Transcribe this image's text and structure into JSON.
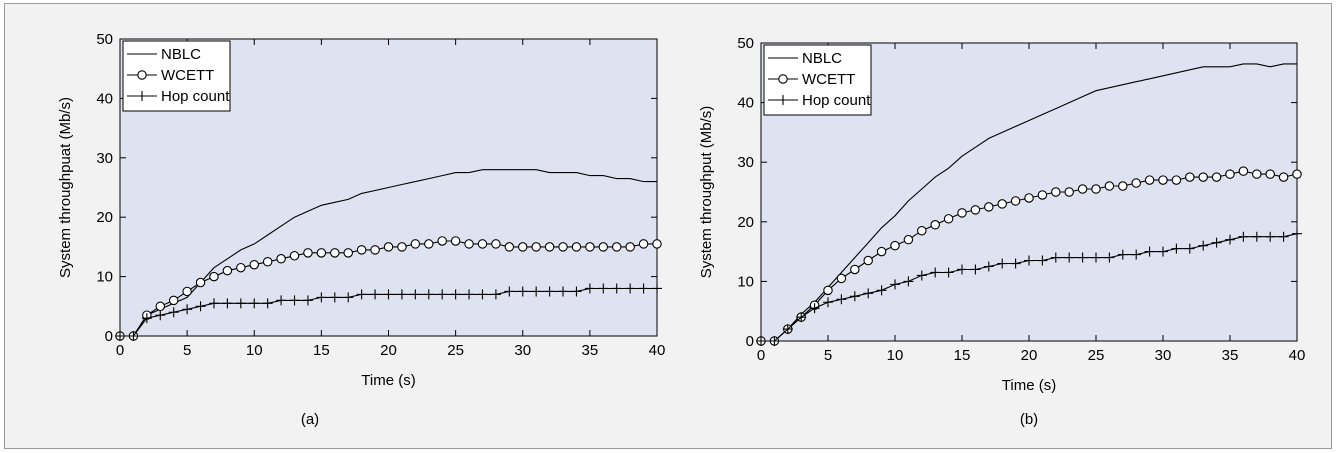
{
  "colors": {
    "figure_background": "#f2f2f2",
    "plot_background": "#dfe3f1",
    "line": "#000000",
    "marker_fill": "#ffffff"
  },
  "chart_data": [
    {
      "type": "line",
      "caption": "(a)",
      "xlabel": "Time (s)",
      "ylabel": "System throughpuat (Mb/s)",
      "xlim": [
        0,
        40
      ],
      "ylim": [
        0,
        50
      ],
      "xticks": [
        "0",
        "5",
        "10",
        "15",
        "20",
        "25",
        "30",
        "35",
        "40"
      ],
      "yticks": [
        "0",
        "10",
        "20",
        "30",
        "40",
        "50"
      ],
      "grid": false,
      "legend_position": "top-left",
      "series": [
        {
          "name": "NBLC",
          "marker": "none",
          "x": [
            0,
            1,
            2,
            3,
            4,
            5,
            6,
            7,
            8,
            9,
            10,
            11,
            12,
            13,
            14,
            15,
            16,
            17,
            18,
            19,
            20,
            21,
            22,
            23,
            24,
            25,
            26,
            27,
            28,
            29,
            30,
            31,
            32,
            33,
            34,
            35,
            36,
            37,
            38,
            39,
            40
          ],
          "y": [
            0,
            0,
            3.5,
            4.5,
            5.5,
            6.5,
            9,
            11.5,
            13,
            14.5,
            15.5,
            17,
            18.5,
            20,
            21,
            22,
            22.5,
            23,
            24,
            24.5,
            25,
            25.5,
            26,
            26.5,
            27,
            27.5,
            27.5,
            28,
            28,
            28,
            28,
            28,
            27.5,
            27.5,
            27.5,
            27,
            27,
            26.5,
            26.5,
            26,
            26
          ]
        },
        {
          "name": "WCETT",
          "marker": "circle",
          "x": [
            0,
            1,
            2,
            3,
            4,
            5,
            6,
            7,
            8,
            9,
            10,
            11,
            12,
            13,
            14,
            15,
            16,
            17,
            18,
            19,
            20,
            21,
            22,
            23,
            24,
            25,
            26,
            27,
            28,
            29,
            30,
            31,
            32,
            33,
            34,
            35,
            36,
            37,
            38,
            39,
            40
          ],
          "y": [
            0,
            0,
            3.5,
            5,
            6,
            7.5,
            9,
            10,
            11,
            11.5,
            12,
            12.5,
            13,
            13.5,
            14,
            14,
            14,
            14,
            14.5,
            14.5,
            15,
            15,
            15.5,
            15.5,
            16,
            16,
            15.5,
            15.5,
            15.5,
            15,
            15,
            15,
            15,
            15,
            15,
            15,
            15,
            15,
            15,
            15.5,
            15.5
          ]
        },
        {
          "name": "Hop count",
          "marker": "plus",
          "x": [
            0,
            1,
            2,
            3,
            4,
            5,
            6,
            7,
            8,
            9,
            10,
            11,
            12,
            13,
            14,
            15,
            16,
            17,
            18,
            19,
            20,
            21,
            22,
            23,
            24,
            25,
            26,
            27,
            28,
            29,
            30,
            31,
            32,
            33,
            34,
            35,
            36,
            37,
            38,
            39,
            40
          ],
          "y": [
            0,
            0,
            3,
            3.5,
            4,
            4.5,
            5,
            5.5,
            5.5,
            5.5,
            5.5,
            5.5,
            6,
            6,
            6,
            6.5,
            6.5,
            6.5,
            7,
            7,
            7,
            7,
            7,
            7,
            7,
            7,
            7,
            7,
            7,
            7.5,
            7.5,
            7.5,
            7.5,
            7.5,
            7.5,
            8,
            8,
            8,
            8,
            8,
            8
          ]
        }
      ]
    },
    {
      "type": "line",
      "caption": "(b)",
      "xlabel": "Time (s)",
      "ylabel": "System throughput (Mb/s)",
      "xlim": [
        0,
        40
      ],
      "ylim": [
        0,
        50
      ],
      "xticks": [
        "0",
        "5",
        "10",
        "15",
        "20",
        "25",
        "30",
        "35",
        "40"
      ],
      "yticks": [
        "0",
        "10",
        "20",
        "30",
        "40",
        "50"
      ],
      "grid": false,
      "legend_position": "top-left",
      "series": [
        {
          "name": "NBLC",
          "marker": "none",
          "x": [
            0,
            1,
            2,
            3,
            4,
            5,
            6,
            7,
            8,
            9,
            10,
            11,
            12,
            13,
            14,
            15,
            16,
            17,
            18,
            19,
            20,
            21,
            22,
            23,
            24,
            25,
            26,
            27,
            28,
            29,
            30,
            31,
            32,
            33,
            34,
            35,
            36,
            37,
            38,
            39,
            40
          ],
          "y": [
            0,
            0,
            2,
            4.5,
            6.5,
            9,
            11.5,
            14,
            16.5,
            19,
            21,
            23.5,
            25.5,
            27.5,
            29,
            31,
            32.5,
            34,
            35,
            36,
            37,
            38,
            39,
            40,
            41,
            42,
            42.5,
            43,
            43.5,
            44,
            44.5,
            45,
            45.5,
            46,
            46,
            46,
            46.5,
            46.5,
            46,
            46.5,
            46.5
          ]
        },
        {
          "name": "WCETT",
          "marker": "circle",
          "x": [
            0,
            1,
            2,
            3,
            4,
            5,
            6,
            7,
            8,
            9,
            10,
            11,
            12,
            13,
            14,
            15,
            16,
            17,
            18,
            19,
            20,
            21,
            22,
            23,
            24,
            25,
            26,
            27,
            28,
            29,
            30,
            31,
            32,
            33,
            34,
            35,
            36,
            37,
            38,
            39,
            40
          ],
          "y": [
            0,
            0,
            2,
            4,
            6,
            8.5,
            10.5,
            12,
            13.5,
            15,
            16,
            17,
            18.5,
            19.5,
            20.5,
            21.5,
            22,
            22.5,
            23,
            23.5,
            24,
            24.5,
            25,
            25,
            25.5,
            25.5,
            26,
            26,
            26.5,
            27,
            27,
            27,
            27.5,
            27.5,
            27.5,
            28,
            28.5,
            28,
            28,
            27.5,
            28
          ]
        },
        {
          "name": "Hop count",
          "marker": "plus",
          "x": [
            0,
            1,
            2,
            3,
            4,
            5,
            6,
            7,
            8,
            9,
            10,
            11,
            12,
            13,
            14,
            15,
            16,
            17,
            18,
            19,
            20,
            21,
            22,
            23,
            24,
            25,
            26,
            27,
            28,
            29,
            30,
            31,
            32,
            33,
            34,
            35,
            36,
            37,
            38,
            39,
            40
          ],
          "y": [
            0,
            0,
            2,
            4,
            5.5,
            6.5,
            7,
            7.5,
            8,
            8.5,
            9.5,
            10,
            11,
            11.5,
            11.5,
            12,
            12,
            12.5,
            13,
            13,
            13.5,
            13.5,
            14,
            14,
            14,
            14,
            14,
            14.5,
            14.5,
            15,
            15,
            15.5,
            15.5,
            16,
            16.5,
            17,
            17.5,
            17.5,
            17.5,
            17.5,
            18
          ]
        }
      ]
    }
  ]
}
